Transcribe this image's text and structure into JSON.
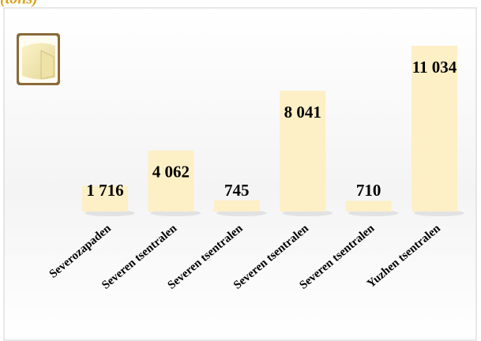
{
  "chart_data": {
    "type": "bar",
    "title": "(tons)",
    "categories": [
      "Severozapaden",
      "Severen tsentralen",
      "Severen tsentralen",
      "Severen tsentralen",
      "Severen tsentralen",
      "Yuzhen tsentralen"
    ],
    "values": [
      1716,
      4062,
      745,
      8041,
      710,
      11034
    ],
    "value_labels": [
      "1 716",
      "4 062",
      "745",
      "8 041",
      "710",
      "11 034"
    ],
    "color": "#fdefc6"
  }
}
